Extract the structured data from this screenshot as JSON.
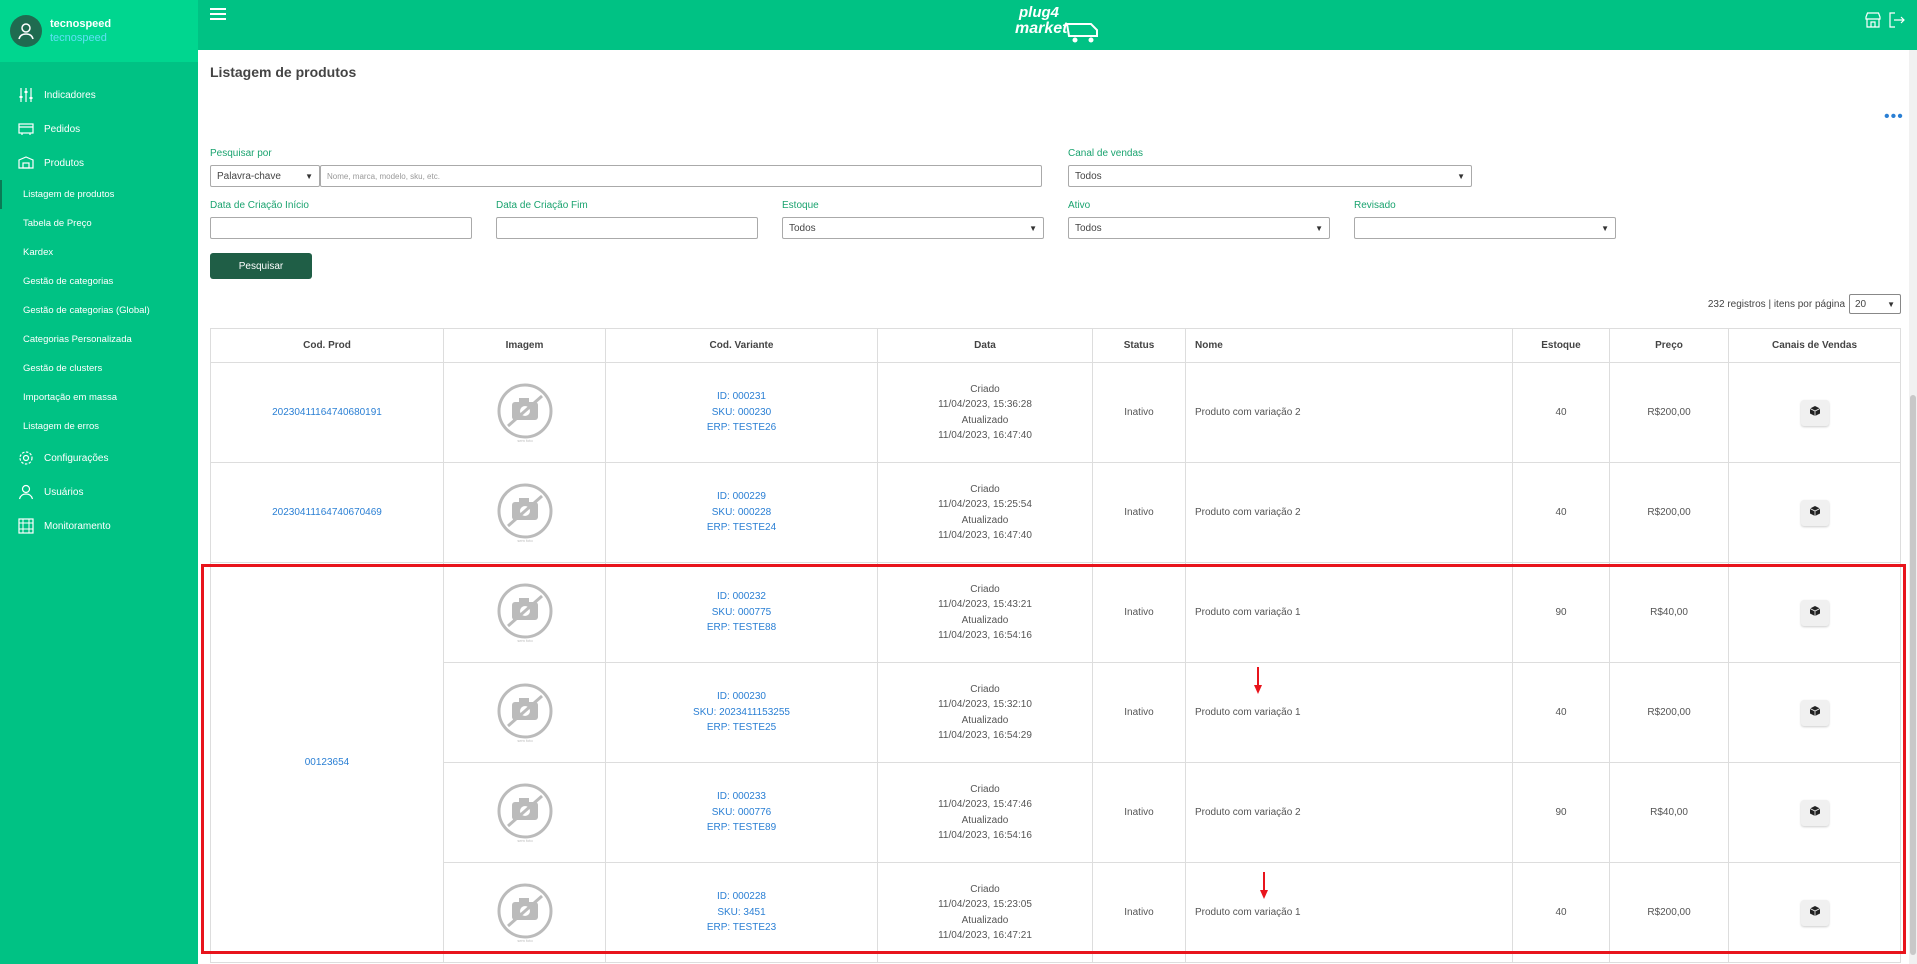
{
  "user": {
    "name": "tecnospeed",
    "company": "tecnospeed"
  },
  "brand": {
    "line1": "plug4",
    "line2": "market"
  },
  "colors": {
    "primary": "#00c284",
    "link": "#2a7fd4",
    "button": "#1f5e46",
    "highlight": "#e8141c"
  },
  "nav": {
    "indicadores": "Indicadores",
    "pedidos": "Pedidos",
    "produtos": "Produtos",
    "submenu": [
      "Listagem de produtos",
      "Tabela de Preço",
      "Kardex",
      "Gestão de categorias",
      "Gestão de categorias (Global)",
      "Categorias Personalizada",
      "Gestão de clusters",
      "Importação em massa",
      "Listagem de erros"
    ],
    "configuracoes": "Configurações",
    "usuarios": "Usuários",
    "monitoramento": "Monitoramento"
  },
  "page": {
    "title": "Listagem de produtos"
  },
  "filters": {
    "search_by_label": "Pesquisar por",
    "search_by_value": "Palavra-chave",
    "search_placeholder": "Nome, marca, modelo, sku, etc.",
    "sales_channel_label": "Canal de vendas",
    "sales_channel_value": "Todos",
    "date_start_label": "Data de Criação Início",
    "date_end_label": "Data de Criação Fim",
    "stock_label": "Estoque",
    "stock_value": "Todos",
    "active_label": "Ativo",
    "active_value": "Todos",
    "reviewed_label": "Revisado",
    "reviewed_value": "",
    "search_button": "Pesquisar"
  },
  "pagination": {
    "records": "232 registros | itens por página",
    "per_page": "20"
  },
  "table": {
    "headers": [
      "Cod. Prod",
      "Imagem",
      "Cod. Variante",
      "Data",
      "Status",
      "Nome",
      "Estoque",
      "Preço",
      "Canais de Vendas"
    ],
    "rows": [
      {
        "cod_prod": "20230411164740680191",
        "id": "ID: 000231",
        "sku": "SKU: 000230",
        "erp": "ERP: TESTE26",
        "created_label": "Criado",
        "created": "11/04/2023, 15:36:28",
        "updated_label": "Atualizado",
        "updated": "11/04/2023, 16:47:40",
        "status": "Inativo",
        "name": "Produto com variação 2",
        "stock": "40",
        "price": "R$200,00"
      },
      {
        "cod_prod": "20230411164740670469",
        "id": "ID: 000229",
        "sku": "SKU: 000228",
        "erp": "ERP: TESTE24",
        "created_label": "Criado",
        "created": "11/04/2023, 15:25:54",
        "updated_label": "Atualizado",
        "updated": "11/04/2023, 16:47:40",
        "status": "Inativo",
        "name": "Produto com variação 2",
        "stock": "40",
        "price": "R$200,00"
      },
      {
        "cod_prod": "00123654",
        "id": "ID: 000232",
        "sku": "SKU: 000775",
        "erp": "ERP: TESTE88",
        "created_label": "Criado",
        "created": "11/04/2023, 15:43:21",
        "updated_label": "Atualizado",
        "updated": "11/04/2023, 16:54:16",
        "status": "Inativo",
        "name": "Produto com variação 1",
        "stock": "90",
        "price": "R$40,00"
      },
      {
        "id": "ID: 000230",
        "sku": "SKU: 2023411153255",
        "erp": "ERP: TESTE25",
        "created_label": "Criado",
        "created": "11/04/2023, 15:32:10",
        "updated_label": "Atualizado",
        "updated": "11/04/2023, 16:54:29",
        "status": "Inativo",
        "name": "Produto com variação 1",
        "stock": "40",
        "price": "R$200,00"
      },
      {
        "id": "ID: 000233",
        "sku": "SKU: 000776",
        "erp": "ERP: TESTE89",
        "created_label": "Criado",
        "created": "11/04/2023, 15:47:46",
        "updated_label": "Atualizado",
        "updated": "11/04/2023, 16:54:16",
        "status": "Inativo",
        "name": "Produto com variação 2",
        "stock": "90",
        "price": "R$40,00"
      },
      {
        "id": "ID: 000228",
        "sku": "SKU: 3451",
        "erp": "ERP: TESTE23",
        "created_label": "Criado",
        "created": "11/04/2023, 15:23:05",
        "updated_label": "Atualizado",
        "updated": "11/04/2023, 16:47:21",
        "status": "Inativo",
        "name": "Produto com variação 1",
        "stock": "40",
        "price": "R$200,00"
      }
    ]
  }
}
